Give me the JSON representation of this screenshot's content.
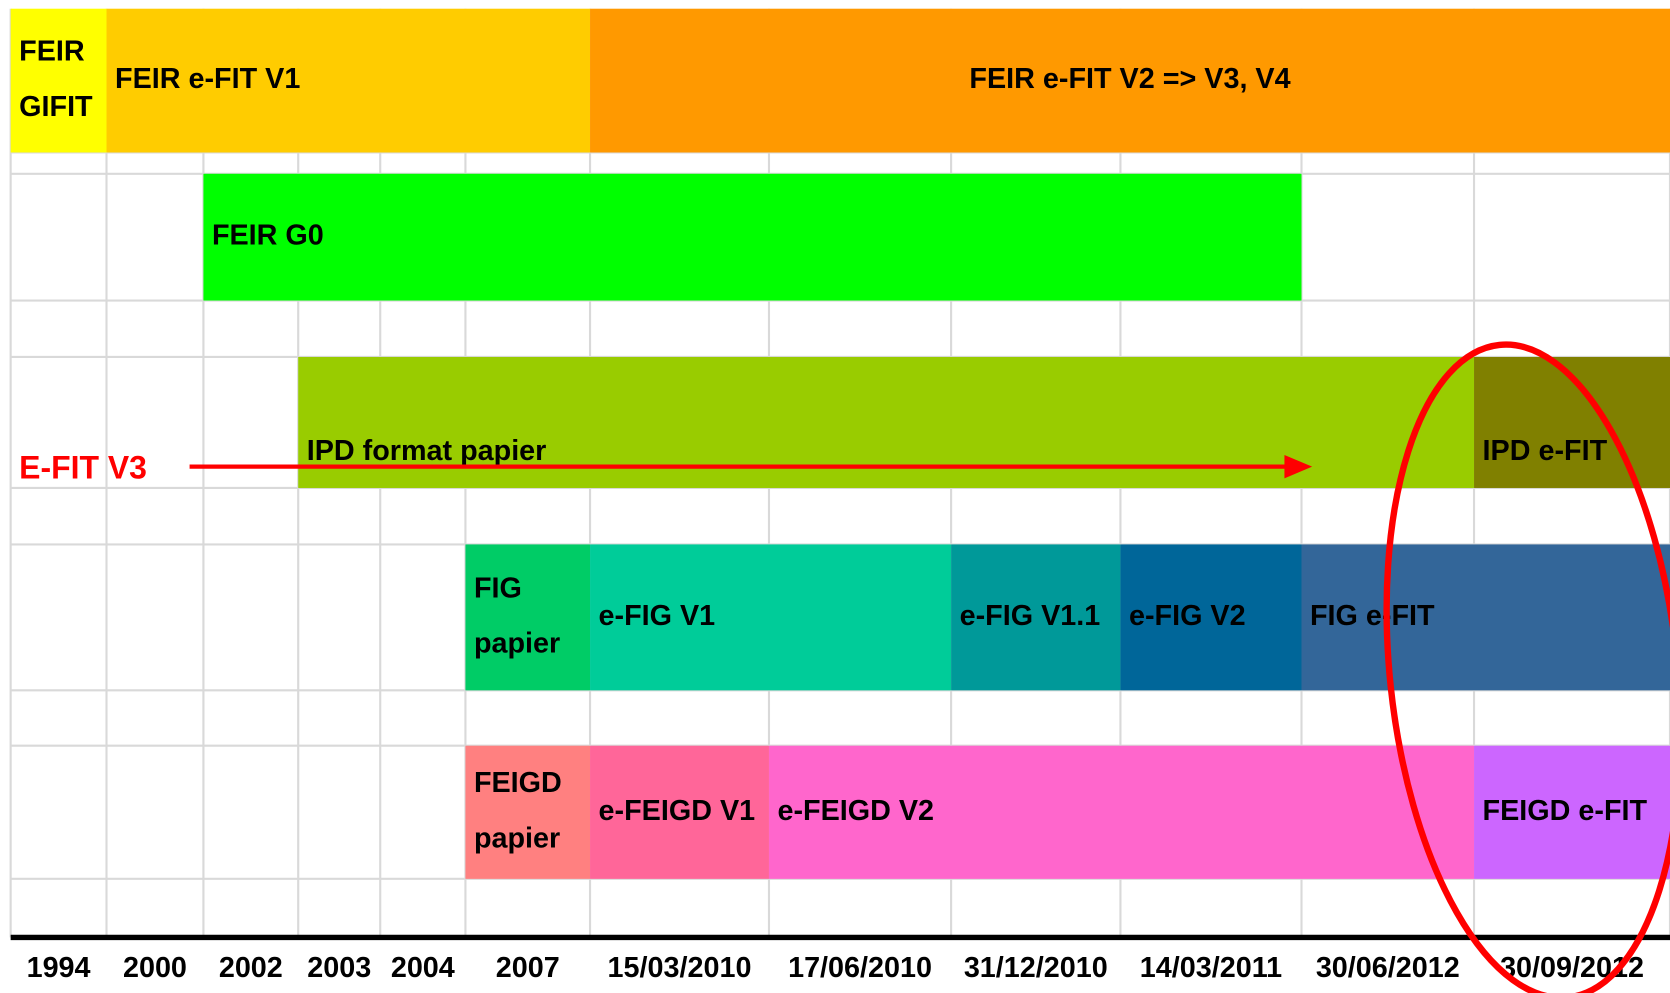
{
  "timeline": {
    "columns": [
      "1994",
      "2000",
      "2002",
      "2003",
      "2004",
      "2007",
      "15/03/2010",
      "17/06/2010",
      "31/12/2010",
      "14/03/2011",
      "30/06/2012",
      "30/09/2012"
    ],
    "bars": [
      {
        "lines": [
          "FEIR",
          "GIFIT"
        ],
        "color": "#ffff00"
      },
      {
        "lines": [
          "FEIR e-FIT V1"
        ],
        "color": "#ffcc00"
      },
      {
        "lines": [
          "FEIR e-FIT V2 => V3, V4"
        ],
        "color": "#ff9900"
      },
      {
        "lines": [
          "FEIR G0"
        ],
        "color": "#00ff00"
      },
      {
        "lines": [
          "IPD format papier"
        ],
        "color": "#99cc00"
      },
      {
        "lines": [
          "IPD e-FIT"
        ],
        "color": "#808000"
      },
      {
        "lines": [
          "FIG",
          "papier"
        ],
        "color": "#00cc66"
      },
      {
        "lines": [
          "e-FIG V1"
        ],
        "color": "#00cc99"
      },
      {
        "lines": [
          "e-FIG V1.1"
        ],
        "color": "#009999"
      },
      {
        "lines": [
          "e-FIG V2"
        ],
        "color": "#006699"
      },
      {
        "lines": [
          "FIG e-FIT"
        ],
        "color": "#336699"
      },
      {
        "lines": [
          "FEIGD",
          "papier"
        ],
        "color": "#ff8080"
      },
      {
        "lines": [
          "e-FEIGD V1"
        ],
        "color": "#ff6699"
      },
      {
        "lines": [
          "e-FEIGD V2"
        ],
        "color": "#ff66cc"
      },
      {
        "lines": [
          "FEIGD e-FIT"
        ],
        "color": "#cc66ff"
      }
    ],
    "arrow_label": "E-FIT V3"
  }
}
